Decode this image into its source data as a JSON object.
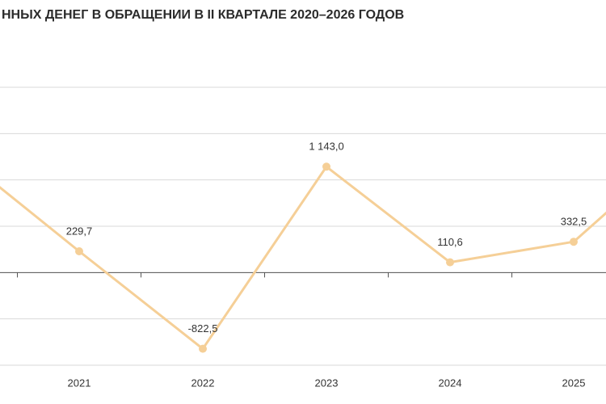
{
  "chart_data": {
    "type": "line",
    "title": "ННЫХ ДЕНЕГ В ОБРАЩЕНИИ В II КВАРТАЛЕ 2020–2026 ГОДОВ",
    "categories": [
      null,
      "2021",
      "2022",
      "2023",
      "2024",
      "2025",
      null
    ],
    "series": [
      {
        "color": "#f5cf97",
        "values": [
          1305,
          229.7,
          -822.5,
          1143.0,
          110.6,
          332.5,
          1514
        ],
        "value_labels": [
          null,
          "229,7",
          "-822,5",
          "1 143,0",
          "110,6",
          "332,5",
          null
        ]
      }
    ],
    "ylim": [
      -1000,
      2000
    ],
    "yticks": [
      -1000,
      -500,
      0,
      500,
      1000,
      1500,
      2000
    ],
    "grid": true
  }
}
